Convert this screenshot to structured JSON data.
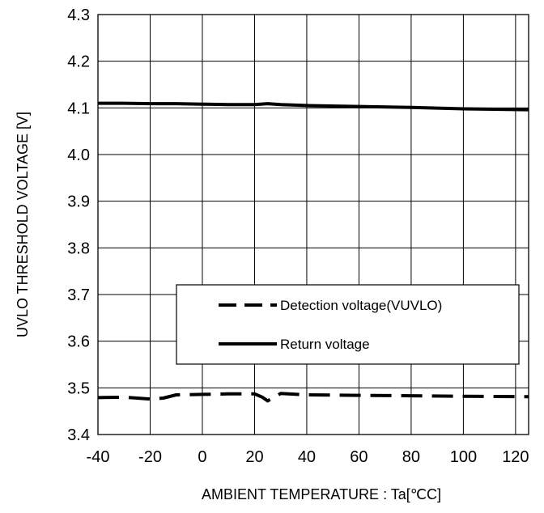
{
  "chart_data": {
    "type": "line",
    "title": "",
    "xlabel": "AMBIENT TEMPERATURE : Ta[℃C]",
    "ylabel": "UVLO THRESHOLD VOLTAGE [V]",
    "xlim": [
      -40,
      125
    ],
    "ylim": [
      3.4,
      4.3
    ],
    "xticks": [
      -40,
      -20,
      0,
      20,
      40,
      60,
      80,
      100,
      120
    ],
    "yticks": [
      3.4,
      3.5,
      3.6,
      3.7,
      3.8,
      3.9,
      4.0,
      4.1,
      4.2,
      4.3
    ],
    "x_tick_labels": [
      "-40",
      "-20",
      "0",
      "20",
      "40",
      "60",
      "80",
      "100",
      "120"
    ],
    "y_tick_labels": [
      "3.4",
      "3.5",
      "3.6",
      "3.7",
      "3.8",
      "3.9",
      "4.0",
      "4.1",
      "4.2",
      "4.3"
    ],
    "grid": true,
    "legend_position": "center-right",
    "series": [
      {
        "name": "Detection voltage(VUVLO)",
        "style": "dashed",
        "color": "#000000",
        "x": [
          -40,
          -30,
          -25,
          -20,
          -15,
          -10,
          0,
          10,
          20,
          23,
          25,
          30,
          40,
          60,
          80,
          100,
          125
        ],
        "y": [
          3.479,
          3.48,
          3.478,
          3.476,
          3.478,
          3.485,
          3.486,
          3.487,
          3.487,
          3.48,
          3.472,
          3.488,
          3.485,
          3.484,
          3.483,
          3.482,
          3.481
        ]
      },
      {
        "name": "Return voltage",
        "style": "solid",
        "color": "#000000",
        "x": [
          -40,
          -30,
          -20,
          -10,
          0,
          10,
          20,
          25,
          30,
          40,
          60,
          80,
          100,
          125
        ],
        "y": [
          4.11,
          4.11,
          4.109,
          4.109,
          4.108,
          4.107,
          4.107,
          4.109,
          4.107,
          4.105,
          4.103,
          4.101,
          4.098,
          4.096
        ]
      }
    ]
  }
}
